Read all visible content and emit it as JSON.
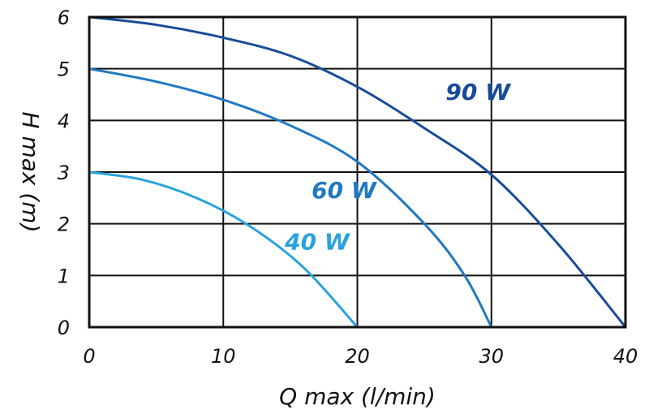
{
  "chart_data": {
    "type": "line",
    "xlabel": "Q max (l/min)",
    "ylabel": "H max (m)",
    "xlim": [
      0,
      40
    ],
    "ylim": [
      0,
      6
    ],
    "x_ticks": [
      "0",
      "10",
      "20",
      "30",
      "40"
    ],
    "y_ticks": [
      "0",
      "1",
      "2",
      "3",
      "4",
      "5",
      "6"
    ],
    "grid": true,
    "series": [
      {
        "name": "40 W",
        "color": "#29a3de",
        "points": [
          [
            0,
            3.0
          ],
          [
            4,
            2.85
          ],
          [
            8,
            2.5
          ],
          [
            12,
            1.95
          ],
          [
            16,
            1.15
          ],
          [
            20,
            0
          ]
        ]
      },
      {
        "name": "60 W",
        "color": "#1f78c2",
        "points": [
          [
            0,
            5.0
          ],
          [
            5,
            4.75
          ],
          [
            10,
            4.4
          ],
          [
            15,
            3.9
          ],
          [
            20,
            3.2
          ],
          [
            25,
            2.0
          ],
          [
            28,
            1.0
          ],
          [
            30,
            0
          ]
        ]
      },
      {
        "name": "90 W",
        "color": "#174c98",
        "points": [
          [
            0,
            6.0
          ],
          [
            5,
            5.85
          ],
          [
            10,
            5.6
          ],
          [
            15,
            5.25
          ],
          [
            20,
            4.65
          ],
          [
            25,
            3.85
          ],
          [
            30,
            2.95
          ],
          [
            35,
            1.6
          ],
          [
            40,
            0
          ]
        ]
      }
    ]
  }
}
